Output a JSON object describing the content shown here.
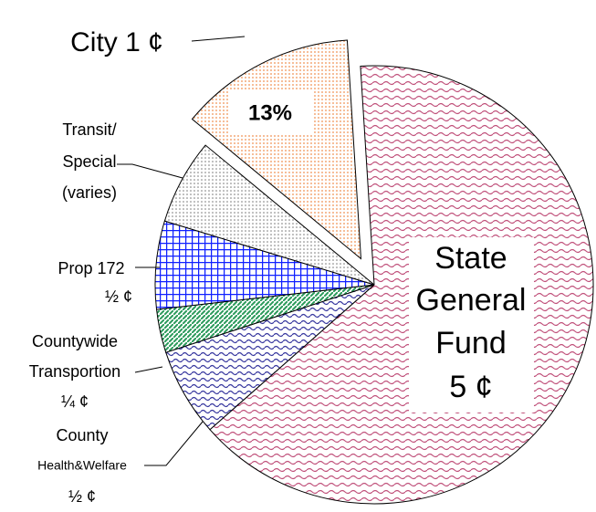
{
  "chart_data": {
    "type": "pie",
    "labels": [
      [
        "State",
        "General",
        "Fund",
        "5 ¢"
      ],
      [
        "County",
        "Health&Welfare",
        "½ ¢"
      ],
      [
        "Countywide",
        "Transportion",
        "¼ ¢"
      ],
      [
        "Prop 172",
        "½ ¢"
      ],
      [
        "Transit/",
        "Special",
        "(varies)"
      ],
      [
        "City 1 ¢"
      ]
    ],
    "values": [
      64.5,
      6.5,
      3.2,
      6.5,
      6.3,
      13
    ],
    "value_labels": [
      null,
      null,
      null,
      null,
      null,
      "13%"
    ],
    "colors": [
      "#c0507a",
      "#3a3aa0",
      "#2a9a5a",
      "#1020ff",
      "#888888",
      "#f09050"
    ],
    "exploded": [
      false,
      false,
      false,
      false,
      false,
      true
    ]
  }
}
